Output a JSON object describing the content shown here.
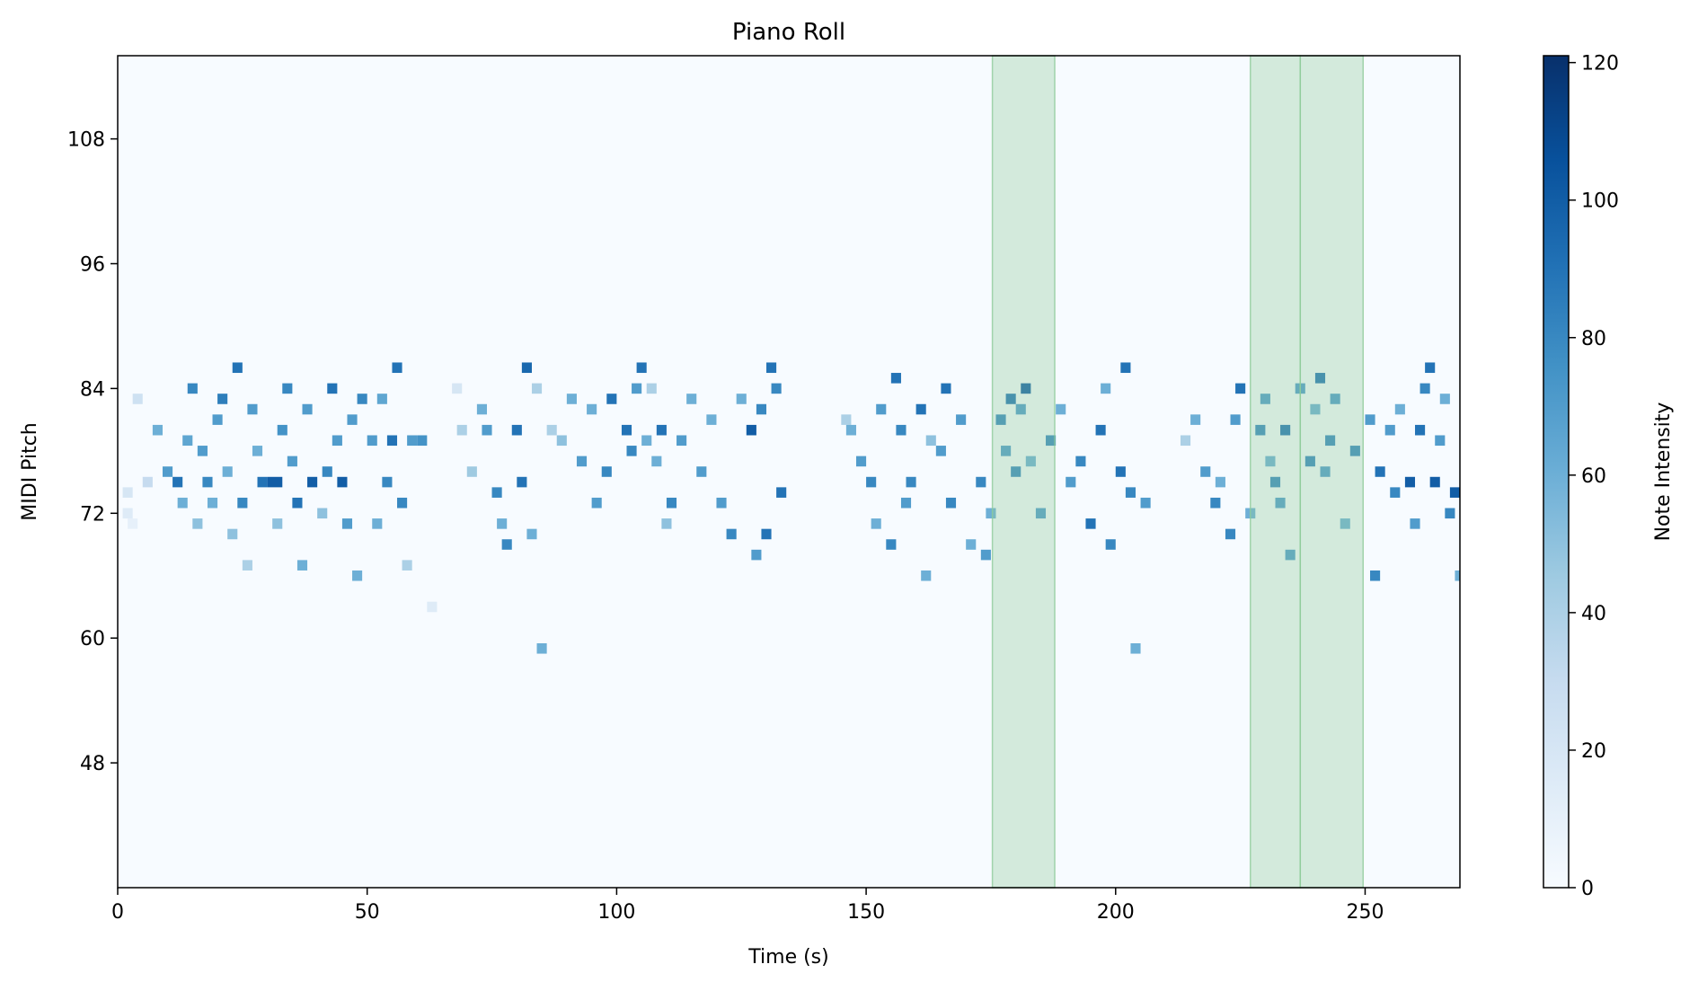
{
  "chart_data": {
    "type": "heatmap",
    "title": "Piano Roll",
    "xlabel": "Time (s)",
    "ylabel": "MIDI Pitch",
    "xlim": [
      0,
      269
    ],
    "ylim": [
      36,
      116
    ],
    "x_ticks": [
      0,
      50,
      100,
      150,
      200,
      250
    ],
    "y_ticks": [
      48,
      60,
      72,
      84,
      96,
      108
    ],
    "colormap": "Blues",
    "colorbar": {
      "label": "Note Intensity",
      "min": 0,
      "max": 121,
      "ticks": [
        0,
        20,
        40,
        60,
        80,
        100,
        120
      ]
    },
    "highlight_color": "#8fcc9a",
    "highlights": [
      [
        175.3,
        187.8
      ],
      [
        227.0,
        237.0
      ],
      [
        237.0,
        249.6
      ]
    ],
    "notes": [
      [
        1,
        3,
        74,
        20
      ],
      [
        1,
        3,
        72,
        15
      ],
      [
        2,
        4,
        71,
        10
      ],
      [
        3,
        5,
        83,
        25
      ],
      [
        5,
        7,
        75,
        30
      ],
      [
        7,
        9,
        80,
        60
      ],
      [
        9,
        11,
        76,
        70
      ],
      [
        11,
        13,
        75,
        90
      ],
      [
        12,
        14,
        73,
        60
      ],
      [
        13,
        15,
        79,
        65
      ],
      [
        14,
        16,
        84,
        80
      ],
      [
        15,
        17,
        71,
        50
      ],
      [
        16,
        18,
        78,
        70
      ],
      [
        17,
        19,
        75,
        80
      ],
      [
        18,
        20,
        73,
        60
      ],
      [
        19,
        21,
        81,
        70
      ],
      [
        20,
        22,
        83,
        85
      ],
      [
        21,
        23,
        76,
        60
      ],
      [
        22,
        24,
        70,
        50
      ],
      [
        23,
        25,
        86,
        90
      ],
      [
        24,
        26,
        73,
        80
      ],
      [
        25,
        27,
        67,
        40
      ],
      [
        26,
        28,
        82,
        70
      ],
      [
        27,
        29,
        78,
        60
      ],
      [
        28,
        30,
        75,
        90
      ],
      [
        30,
        33,
        75,
        100
      ],
      [
        31,
        33,
        71,
        50
      ],
      [
        32,
        34,
        80,
        75
      ],
      [
        33,
        35,
        84,
        80
      ],
      [
        34,
        36,
        77,
        70
      ],
      [
        35,
        37,
        73,
        90
      ],
      [
        36,
        38,
        67,
        60
      ],
      [
        37,
        39,
        82,
        70
      ],
      [
        38,
        40,
        75,
        100
      ],
      [
        40,
        42,
        72,
        50
      ],
      [
        41,
        43,
        76,
        80
      ],
      [
        42,
        44,
        84,
        90
      ],
      [
        43,
        45,
        79,
        70
      ],
      [
        44,
        46,
        75,
        100
      ],
      [
        45,
        47,
        71,
        70
      ],
      [
        46,
        48,
        81,
        70
      ],
      [
        47,
        49,
        66,
        60
      ],
      [
        48,
        50,
        83,
        80
      ],
      [
        50,
        52,
        79,
        70
      ],
      [
        51,
        53,
        71,
        60
      ],
      [
        52,
        54,
        83,
        65
      ],
      [
        53,
        55,
        75,
        80
      ],
      [
        54,
        56,
        79,
        90
      ],
      [
        55,
        57,
        86,
        90
      ],
      [
        56,
        58,
        73,
        80
      ],
      [
        57,
        59,
        67,
        40
      ],
      [
        58,
        60,
        79,
        70
      ],
      [
        60,
        62,
        79,
        75
      ],
      [
        62,
        64,
        63,
        15
      ],
      [
        67,
        69,
        84,
        20
      ],
      [
        68,
        70,
        80,
        40
      ],
      [
        70,
        72,
        76,
        45
      ],
      [
        72,
        74,
        82,
        60
      ],
      [
        73,
        75,
        80,
        70
      ],
      [
        75,
        77,
        74,
        80
      ],
      [
        76,
        78,
        71,
        60
      ],
      [
        77,
        79,
        69,
        80
      ],
      [
        79,
        81,
        80,
        90
      ],
      [
        80,
        82,
        75,
        90
      ],
      [
        81,
        83,
        86,
        95
      ],
      [
        82,
        84,
        70,
        60
      ],
      [
        83,
        85,
        84,
        40
      ],
      [
        84,
        86,
        59,
        60
      ],
      [
        86,
        88,
        80,
        40
      ],
      [
        88,
        90,
        79,
        50
      ],
      [
        90,
        92,
        83,
        60
      ],
      [
        92,
        94,
        77,
        70
      ],
      [
        94,
        96,
        82,
        60
      ],
      [
        95,
        97,
        73,
        70
      ],
      [
        97,
        99,
        76,
        80
      ],
      [
        98,
        100,
        83,
        90
      ],
      [
        101,
        103,
        80,
        90
      ],
      [
        102,
        104,
        78,
        80
      ],
      [
        103,
        105,
        84,
        70
      ],
      [
        104,
        106,
        86,
        90
      ],
      [
        105,
        107,
        79,
        60
      ],
      [
        106,
        108,
        84,
        40
      ],
      [
        107,
        109,
        77,
        60
      ],
      [
        108,
        110,
        80,
        90
      ],
      [
        109,
        111,
        71,
        50
      ],
      [
        110,
        112,
        73,
        80
      ],
      [
        112,
        114,
        79,
        70
      ],
      [
        114,
        116,
        83,
        60
      ],
      [
        116,
        118,
        76,
        70
      ],
      [
        118,
        120,
        81,
        60
      ],
      [
        120,
        122,
        73,
        70
      ],
      [
        122,
        124,
        70,
        80
      ],
      [
        124,
        126,
        83,
        60
      ],
      [
        126,
        128,
        80,
        100
      ],
      [
        127,
        129,
        68,
        70
      ],
      [
        128,
        130,
        82,
        80
      ],
      [
        129,
        131,
        70,
        90
      ],
      [
        130,
        132,
        86,
        90
      ],
      [
        131,
        133,
        84,
        80
      ],
      [
        132,
        134,
        74,
        90
      ],
      [
        145,
        147,
        81,
        40
      ],
      [
        146,
        148,
        80,
        60
      ],
      [
        148,
        150,
        77,
        70
      ],
      [
        150,
        152,
        75,
        80
      ],
      [
        151,
        153,
        71,
        60
      ],
      [
        152,
        154,
        82,
        70
      ],
      [
        154,
        156,
        69,
        80
      ],
      [
        155,
        157,
        85,
        90
      ],
      [
        156,
        158,
        80,
        80
      ],
      [
        157,
        159,
        73,
        70
      ],
      [
        158,
        160,
        75,
        80
      ],
      [
        160,
        162,
        82,
        90
      ],
      [
        161,
        163,
        66,
        60
      ],
      [
        162,
        164,
        79,
        50
      ],
      [
        164,
        166,
        78,
        70
      ],
      [
        165,
        167,
        84,
        90
      ],
      [
        166,
        168,
        73,
        80
      ],
      [
        168,
        170,
        81,
        70
      ],
      [
        170,
        172,
        69,
        60
      ],
      [
        172,
        174,
        75,
        80
      ],
      [
        173,
        175,
        68,
        70
      ],
      [
        174,
        176,
        72,
        60
      ],
      [
        176,
        178,
        81,
        80
      ],
      [
        177,
        179,
        78,
        70
      ],
      [
        178,
        180,
        83,
        90
      ],
      [
        179,
        181,
        76,
        80
      ],
      [
        180,
        182,
        82,
        70
      ],
      [
        181,
        183,
        84,
        100
      ],
      [
        182,
        184,
        77,
        60
      ],
      [
        184,
        186,
        72,
        70
      ],
      [
        186,
        188,
        79,
        80
      ],
      [
        188,
        190,
        82,
        60
      ],
      [
        190,
        192,
        75,
        70
      ],
      [
        192,
        194,
        77,
        80
      ],
      [
        194,
        196,
        71,
        90
      ],
      [
        196,
        198,
        80,
        90
      ],
      [
        197,
        199,
        84,
        60
      ],
      [
        198,
        200,
        69,
        80
      ],
      [
        200,
        202,
        76,
        90
      ],
      [
        201,
        203,
        86,
        90
      ],
      [
        202,
        204,
        74,
        80
      ],
      [
        203,
        205,
        59,
        60
      ],
      [
        205,
        207,
        73,
        70
      ],
      [
        213,
        215,
        79,
        40
      ],
      [
        215,
        217,
        81,
        60
      ],
      [
        217,
        219,
        76,
        70
      ],
      [
        219,
        221,
        73,
        80
      ],
      [
        220,
        222,
        75,
        60
      ],
      [
        222,
        224,
        70,
        80
      ],
      [
        223,
        225,
        81,
        70
      ],
      [
        224,
        226,
        84,
        90
      ],
      [
        226,
        228,
        72,
        60
      ],
      [
        228,
        230,
        80,
        80
      ],
      [
        229,
        231,
        83,
        70
      ],
      [
        230,
        232,
        77,
        60
      ],
      [
        231,
        233,
        75,
        80
      ],
      [
        232,
        234,
        73,
        70
      ],
      [
        233,
        235,
        80,
        90
      ],
      [
        234,
        236,
        68,
        70
      ],
      [
        236,
        238,
        84,
        70
      ],
      [
        238,
        240,
        77,
        80
      ],
      [
        239,
        241,
        82,
        60
      ],
      [
        240,
        242,
        85,
        90
      ],
      [
        241,
        243,
        76,
        70
      ],
      [
        242,
        244,
        79,
        80
      ],
      [
        243,
        245,
        83,
        70
      ],
      [
        245,
        247,
        71,
        60
      ],
      [
        247,
        249,
        78,
        80
      ],
      [
        250,
        252,
        81,
        70
      ],
      [
        251,
        253,
        66,
        80
      ],
      [
        252,
        254,
        76,
        90
      ],
      [
        254,
        256,
        80,
        70
      ],
      [
        255,
        257,
        74,
        80
      ],
      [
        256,
        258,
        82,
        60
      ],
      [
        258,
        260,
        75,
        100
      ],
      [
        259,
        261,
        71,
        70
      ],
      [
        260,
        262,
        80,
        90
      ],
      [
        261,
        263,
        84,
        80
      ],
      [
        262,
        264,
        86,
        90
      ],
      [
        263,
        265,
        75,
        100
      ],
      [
        264,
        266,
        79,
        70
      ],
      [
        265,
        267,
        83,
        60
      ],
      [
        266,
        268,
        72,
        80
      ],
      [
        267,
        269,
        74,
        100
      ],
      [
        268,
        269,
        66,
        60
      ]
    ]
  }
}
